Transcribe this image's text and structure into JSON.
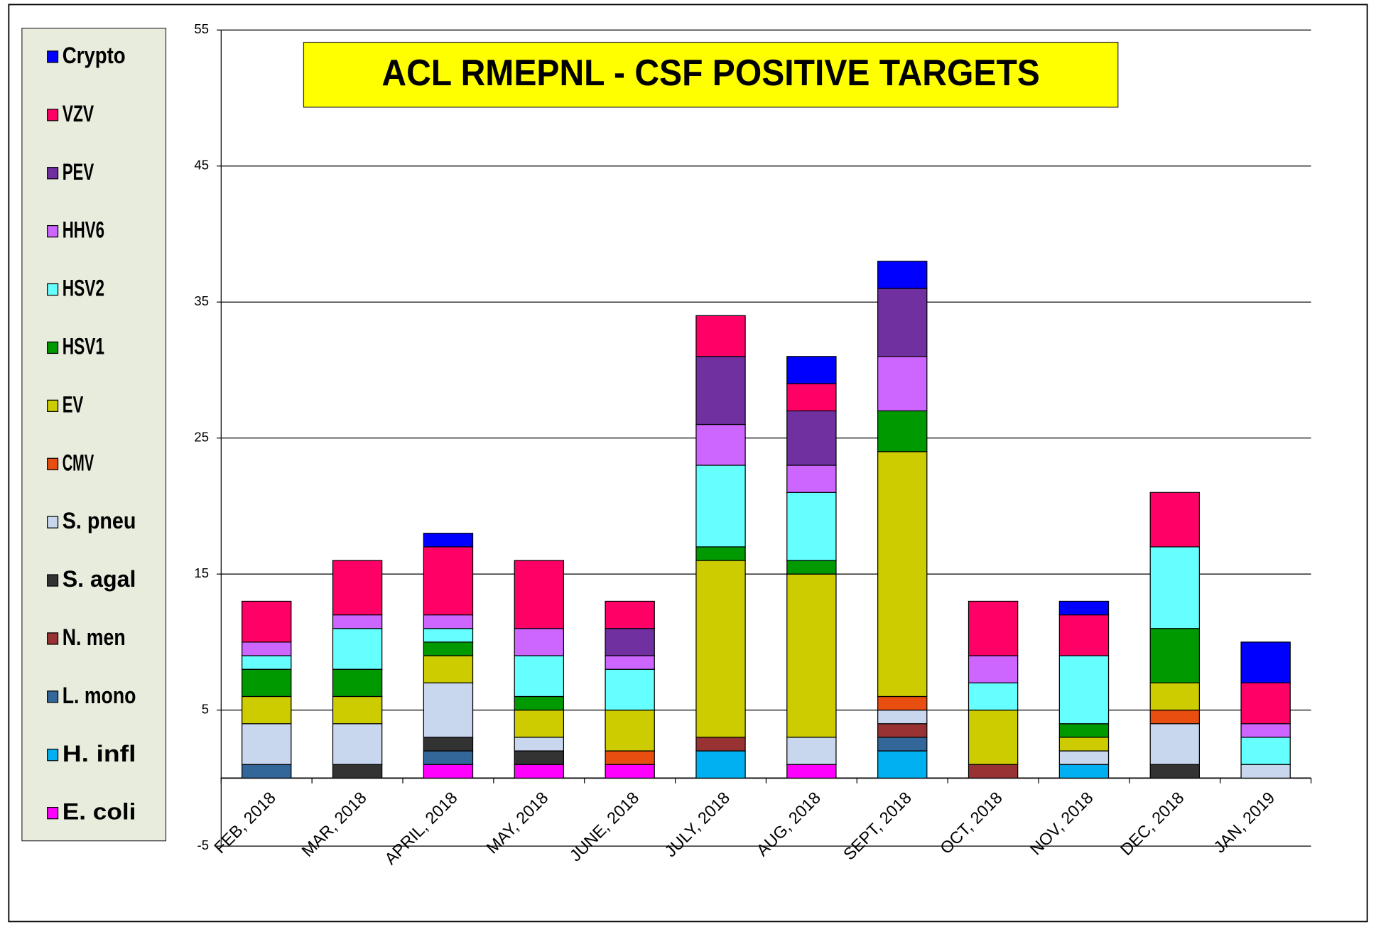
{
  "chart_data": {
    "type": "stacked_bar",
    "title": "ACL RMEPNL - CSF POSITIVE TARGETS",
    "categories": [
      "FEB, 2018",
      "MAR, 2018",
      "APRIL, 2018",
      "MAY, 2018",
      "JUNE, 2018",
      "JULY, 2018",
      "AUG, 2018",
      "SEPT, 2018",
      "OCT, 2018",
      "NOV, 2018",
      "DEC, 2018",
      "JAN, 2019"
    ],
    "series": [
      {
        "name": "E. coli",
        "color": "#ff00ff",
        "values": [
          0,
          0,
          1,
          1,
          1,
          0,
          1,
          0,
          0,
          0,
          0,
          0
        ]
      },
      {
        "name": "H. infl",
        "color": "#00b0f0",
        "values": [
          0,
          0,
          0,
          0,
          0,
          2,
          0,
          2,
          0,
          1,
          0,
          0
        ]
      },
      {
        "name": "L. mono",
        "color": "#336699",
        "values": [
          1,
          0,
          1,
          0,
          0,
          0,
          0,
          1,
          0,
          0,
          0,
          0
        ]
      },
      {
        "name": "N. men",
        "color": "#993333",
        "values": [
          0,
          0,
          0,
          0,
          0,
          1,
          0,
          1,
          1,
          0,
          0,
          0
        ]
      },
      {
        "name": "S. agal",
        "color": "#333333",
        "values": [
          0,
          1,
          1,
          1,
          0,
          0,
          0,
          0,
          0,
          0,
          1,
          0
        ]
      },
      {
        "name": "S. pneu",
        "color": "#c8d6ee",
        "values": [
          3,
          3,
          4,
          1,
          0,
          0,
          2,
          1,
          0,
          1,
          3,
          1
        ]
      },
      {
        "name": "CMV",
        "color": "#e84e0f",
        "values": [
          0,
          0,
          0,
          0,
          1,
          0,
          0,
          1,
          0,
          0,
          1,
          0
        ]
      },
      {
        "name": "EV",
        "color": "#cccc00",
        "values": [
          2,
          2,
          2,
          2,
          3,
          13,
          12,
          18,
          4,
          1,
          2,
          0
        ]
      },
      {
        "name": "HSV1",
        "color": "#009900",
        "values": [
          2,
          2,
          1,
          1,
          0,
          1,
          1,
          3,
          0,
          1,
          4,
          0
        ]
      },
      {
        "name": "HSV2",
        "color": "#66ffff",
        "values": [
          1,
          3,
          1,
          3,
          3,
          6,
          5,
          0,
          2,
          5,
          6,
          2
        ]
      },
      {
        "name": "HHV6",
        "color": "#cc66ff",
        "values": [
          1,
          1,
          1,
          2,
          1,
          3,
          2,
          4,
          2,
          0,
          0,
          1
        ]
      },
      {
        "name": "PEV",
        "color": "#7030a0",
        "values": [
          0,
          0,
          0,
          0,
          2,
          5,
          4,
          5,
          0,
          0,
          0,
          0
        ]
      },
      {
        "name": "VZV",
        "color": "#ff0066",
        "values": [
          3,
          4,
          5,
          5,
          2,
          3,
          2,
          0,
          4,
          3,
          4,
          3
        ]
      },
      {
        "name": "Crypto",
        "color": "#0000ff",
        "values": [
          0,
          0,
          1,
          0,
          0,
          0,
          2,
          2,
          0,
          1,
          0,
          3
        ]
      }
    ],
    "ylim": [
      -5,
      55
    ],
    "yticks": [
      -5,
      5,
      15,
      25,
      35,
      45,
      55
    ],
    "grid": true,
    "legend": "left"
  }
}
